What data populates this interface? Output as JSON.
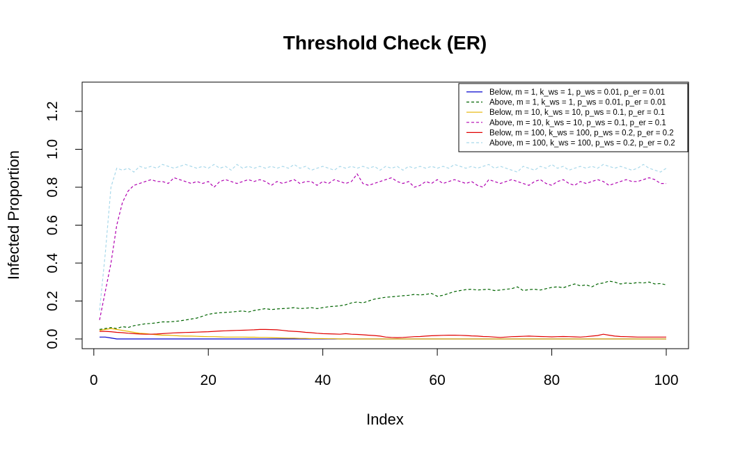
{
  "chart_data": {
    "type": "line",
    "title": "Threshold Check (ER)",
    "xlabel": "Index",
    "ylabel": "Infected Proportion",
    "xlim": [
      1,
      100
    ],
    "ylim": [
      0,
      1.3
    ],
    "x_ticks": [
      "0",
      "20",
      "40",
      "60",
      "80",
      "100"
    ],
    "y_ticks": [
      "0.0",
      "0.2",
      "0.4",
      "0.6",
      "0.8",
      "1.0",
      "1.2"
    ],
    "grid": false,
    "legend_position": "top-right",
    "x": [
      1,
      2,
      3,
      4,
      5,
      6,
      7,
      8,
      9,
      10,
      11,
      12,
      13,
      14,
      15,
      16,
      17,
      18,
      19,
      20,
      21,
      22,
      23,
      24,
      25,
      26,
      27,
      28,
      29,
      30,
      31,
      32,
      33,
      34,
      35,
      36,
      37,
      38,
      39,
      40,
      41,
      42,
      43,
      44,
      45,
      46,
      47,
      48,
      49,
      50,
      51,
      52,
      53,
      54,
      55,
      56,
      57,
      58,
      59,
      60,
      61,
      62,
      63,
      64,
      65,
      66,
      67,
      68,
      69,
      70,
      71,
      72,
      73,
      74,
      75,
      76,
      77,
      78,
      79,
      80,
      81,
      82,
      83,
      84,
      85,
      86,
      87,
      88,
      89,
      90,
      91,
      92,
      93,
      94,
      95,
      96,
      97,
      98,
      99,
      100
    ],
    "series": [
      {
        "name": "Below, m = 1, k_ws = 1, p_ws = 0.01, p_er = 0.01",
        "color": "#0000cd",
        "dash": "solid",
        "values": [
          0.01,
          0.01,
          0.005,
          0,
          0,
          0,
          0,
          0,
          0,
          0,
          0,
          0,
          0,
          0,
          0,
          0,
          0,
          0,
          0,
          0,
          0,
          0,
          0,
          0,
          0,
          0,
          0,
          0,
          0,
          0,
          0,
          0,
          0,
          0,
          0,
          0,
          0,
          0,
          0,
          0,
          0,
          0,
          0,
          0,
          0,
          0,
          0,
          0,
          0,
          0,
          0,
          0,
          0,
          0,
          0,
          0,
          0,
          0,
          0,
          0,
          0,
          0,
          0,
          0,
          0,
          0,
          0,
          0,
          0,
          0,
          0,
          0,
          0,
          0,
          0,
          0,
          0,
          0,
          0,
          0,
          0,
          0,
          0,
          0,
          0,
          0,
          0,
          0,
          0,
          0,
          0,
          0,
          0,
          0,
          0,
          0,
          0,
          0,
          0,
          0
        ]
      },
      {
        "name": "Above, m = 1, k_ws = 1, p_ws = 0.01, p_er = 0.01",
        "color": "#006400",
        "dash": "dashed",
        "values": [
          0.05,
          0.055,
          0.06,
          0.055,
          0.065,
          0.06,
          0.07,
          0.075,
          0.08,
          0.082,
          0.085,
          0.09,
          0.09,
          0.092,
          0.095,
          0.1,
          0.105,
          0.11,
          0.12,
          0.13,
          0.135,
          0.138,
          0.14,
          0.142,
          0.145,
          0.148,
          0.142,
          0.15,
          0.155,
          0.16,
          0.155,
          0.158,
          0.16,
          0.162,
          0.165,
          0.16,
          0.162,
          0.165,
          0.16,
          0.165,
          0.17,
          0.172,
          0.175,
          0.18,
          0.19,
          0.195,
          0.19,
          0.2,
          0.21,
          0.215,
          0.22,
          0.222,
          0.225,
          0.228,
          0.23,
          0.235,
          0.232,
          0.235,
          0.24,
          0.225,
          0.23,
          0.24,
          0.25,
          0.255,
          0.26,
          0.262,
          0.258,
          0.26,
          0.262,
          0.255,
          0.258,
          0.262,
          0.265,
          0.275,
          0.255,
          0.26,
          0.262,
          0.258,
          0.265,
          0.272,
          0.275,
          0.27,
          0.28,
          0.29,
          0.28,
          0.285,
          0.275,
          0.29,
          0.295,
          0.305,
          0.3,
          0.29,
          0.295,
          0.292,
          0.298,
          0.295,
          0.3,
          0.29,
          0.292,
          0.285
        ]
      },
      {
        "name": "Below, m = 10, k_ws = 10, p_ws = 0.1, p_er = 0.1",
        "color": "#e6b400",
        "dash": "solid",
        "values": [
          0.045,
          0.05,
          0.055,
          0.05,
          0.045,
          0.04,
          0.035,
          0.03,
          0.028,
          0.025,
          0.022,
          0.02,
          0.02,
          0.018,
          0.016,
          0.015,
          0.015,
          0.014,
          0.013,
          0.012,
          0.012,
          0.011,
          0.01,
          0.01,
          0.01,
          0.01,
          0.009,
          0.009,
          0.008,
          0.008,
          0.007,
          0.006,
          0.005,
          0.004,
          0.004,
          0.003,
          0.003,
          0.002,
          0.002,
          0.002,
          0.001,
          0.001,
          0,
          0,
          0,
          0,
          0,
          0,
          0,
          0,
          0,
          0,
          0,
          0,
          0,
          0,
          0,
          0,
          0,
          0,
          0,
          0,
          0,
          0,
          0,
          0,
          0,
          0,
          0,
          0,
          0,
          0,
          0,
          0,
          0,
          0,
          0,
          0,
          0,
          0,
          0,
          0,
          0,
          0,
          0,
          0,
          0,
          0,
          0,
          0,
          0,
          0,
          0,
          0,
          0,
          0,
          0,
          0,
          0,
          0
        ]
      },
      {
        "name": "Above, m = 10, k_ws = 10, p_ws = 0.1, p_er = 0.1",
        "color": "#b000b0",
        "dash": "dashed",
        "values": [
          0.1,
          0.25,
          0.4,
          0.6,
          0.72,
          0.78,
          0.81,
          0.82,
          0.83,
          0.84,
          0.83,
          0.83,
          0.82,
          0.85,
          0.84,
          0.83,
          0.82,
          0.83,
          0.82,
          0.83,
          0.8,
          0.83,
          0.84,
          0.83,
          0.82,
          0.83,
          0.84,
          0.83,
          0.84,
          0.83,
          0.81,
          0.83,
          0.82,
          0.83,
          0.84,
          0.82,
          0.83,
          0.83,
          0.81,
          0.83,
          0.82,
          0.84,
          0.83,
          0.82,
          0.83,
          0.87,
          0.82,
          0.81,
          0.82,
          0.83,
          0.84,
          0.85,
          0.83,
          0.82,
          0.83,
          0.8,
          0.81,
          0.83,
          0.82,
          0.84,
          0.82,
          0.83,
          0.84,
          0.83,
          0.82,
          0.83,
          0.81,
          0.8,
          0.84,
          0.83,
          0.82,
          0.83,
          0.84,
          0.83,
          0.82,
          0.81,
          0.83,
          0.84,
          0.82,
          0.81,
          0.83,
          0.84,
          0.82,
          0.81,
          0.83,
          0.82,
          0.83,
          0.84,
          0.83,
          0.81,
          0.82,
          0.83,
          0.84,
          0.83,
          0.83,
          0.84,
          0.85,
          0.84,
          0.82,
          0.82
        ]
      },
      {
        "name": "Below, m = 100, k_ws = 100, p_ws = 0.2, p_er = 0.2",
        "color": "#e00000",
        "dash": "solid",
        "values": [
          0.04,
          0.04,
          0.038,
          0.035,
          0.033,
          0.03,
          0.028,
          0.026,
          0.025,
          0.025,
          0.026,
          0.028,
          0.03,
          0.032,
          0.033,
          0.034,
          0.035,
          0.036,
          0.037,
          0.038,
          0.04,
          0.042,
          0.043,
          0.044,
          0.045,
          0.046,
          0.047,
          0.048,
          0.05,
          0.05,
          0.049,
          0.048,
          0.045,
          0.042,
          0.04,
          0.038,
          0.035,
          0.033,
          0.03,
          0.028,
          0.027,
          0.026,
          0.025,
          0.028,
          0.025,
          0.024,
          0.022,
          0.02,
          0.018,
          0.015,
          0.01,
          0.008,
          0.007,
          0.008,
          0.01,
          0.012,
          0.013,
          0.015,
          0.017,
          0.018,
          0.019,
          0.02,
          0.02,
          0.019,
          0.018,
          0.016,
          0.015,
          0.013,
          0.012,
          0.01,
          0.008,
          0.01,
          0.012,
          0.013,
          0.014,
          0.015,
          0.014,
          0.013,
          0.012,
          0.011,
          0.012,
          0.013,
          0.012,
          0.011,
          0.01,
          0.012,
          0.015,
          0.018,
          0.025,
          0.02,
          0.015,
          0.013,
          0.012,
          0.011,
          0.01,
          0.01,
          0.01,
          0.01,
          0.01,
          0.01
        ]
      },
      {
        "name": "Above, m = 100, k_ws = 100, p_ws = 0.2, p_er = 0.2",
        "color": "#a8d8ea",
        "dash": "dashed",
        "values": [
          0.15,
          0.45,
          0.8,
          0.9,
          0.89,
          0.9,
          0.88,
          0.91,
          0.9,
          0.91,
          0.9,
          0.92,
          0.91,
          0.9,
          0.91,
          0.92,
          0.91,
          0.9,
          0.91,
          0.9,
          0.92,
          0.9,
          0.91,
          0.89,
          0.92,
          0.9,
          0.91,
          0.9,
          0.91,
          0.9,
          0.91,
          0.9,
          0.91,
          0.9,
          0.92,
          0.9,
          0.91,
          0.89,
          0.9,
          0.91,
          0.9,
          0.89,
          0.91,
          0.9,
          0.91,
          0.9,
          0.91,
          0.9,
          0.91,
          0.89,
          0.91,
          0.9,
          0.91,
          0.89,
          0.91,
          0.9,
          0.91,
          0.9,
          0.91,
          0.9,
          0.91,
          0.9,
          0.92,
          0.91,
          0.9,
          0.91,
          0.9,
          0.91,
          0.92,
          0.9,
          0.91,
          0.9,
          0.89,
          0.88,
          0.91,
          0.9,
          0.89,
          0.91,
          0.9,
          0.92,
          0.9,
          0.91,
          0.89,
          0.9,
          0.91,
          0.9,
          0.91,
          0.9,
          0.92,
          0.91,
          0.9,
          0.91,
          0.9,
          0.89,
          0.9,
          0.92,
          0.9,
          0.89,
          0.88,
          0.9
        ]
      }
    ]
  }
}
